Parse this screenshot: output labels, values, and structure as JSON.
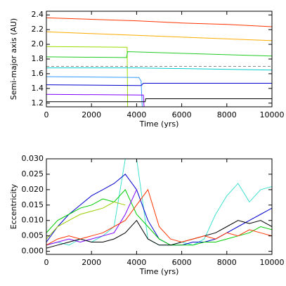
{
  "chart_data": [
    {
      "type": "line",
      "ylabel": "Semi-major axis (AU)",
      "xlabel": "Time (yrs)",
      "xlim": [
        0,
        10000
      ],
      "xticks": [
        0,
        2000,
        4000,
        6000,
        8000,
        10000
      ],
      "ylim": [
        1.15,
        2.45
      ],
      "yticks": [
        1.2,
        1.4,
        1.6,
        1.8,
        {
          "value": 2.0,
          "label": "2.0"
        },
        2.2,
        2.4
      ],
      "series": [
        {
          "color": "#ff3300",
          "x": [
            0,
            2000,
            4000,
            6000,
            8000,
            10000
          ],
          "values": [
            2.36,
            2.34,
            2.32,
            2.29,
            2.27,
            2.24
          ]
        },
        {
          "color": "#ffaa00",
          "x": [
            0,
            10000
          ],
          "values": [
            2.17,
            2.05
          ]
        },
        {
          "color": "#99dd00",
          "x": [
            0,
            3580,
            3600
          ],
          "values": [
            1.97,
            1.96,
            1.15
          ]
        },
        {
          "color": "#22cc22",
          "x": [
            0,
            3550,
            3600,
            10000
          ],
          "values": [
            1.83,
            1.82,
            1.9,
            1.84
          ]
        },
        {
          "color": "#888888",
          "dash": true,
          "x": [
            0,
            10000
          ],
          "values": [
            1.7,
            1.7
          ]
        },
        {
          "color": "#00cccc",
          "x": [
            0,
            4000,
            10000
          ],
          "values": [
            1.68,
            1.68,
            1.65
          ]
        },
        {
          "color": "#3399ff",
          "x": [
            0,
            4100,
            4200,
            4250
          ],
          "values": [
            1.56,
            1.55,
            1.5,
            1.15
          ]
        },
        {
          "color": "#0000cc",
          "x": [
            0,
            4200,
            4300,
            10000
          ],
          "values": [
            1.45,
            1.44,
            1.47,
            1.47
          ]
        },
        {
          "color": "#7f00ff",
          "x": [
            0,
            4300,
            4330
          ],
          "values": [
            1.32,
            1.31,
            1.15
          ]
        },
        {
          "color": "#000000",
          "x": [
            0,
            4380,
            4400,
            10000
          ],
          "values": [
            1.22,
            1.22,
            1.26,
            1.26
          ]
        }
      ]
    },
    {
      "type": "line",
      "ylabel": "Eccentricity",
      "xlabel": "Time (yrs)",
      "xlim": [
        0,
        10000
      ],
      "xticks": [
        0,
        2000,
        4000,
        6000,
        8000,
        10000
      ],
      "ylim": [
        -0.001,
        0.03
      ],
      "yticks": [
        {
          "value": 0,
          "label": "0.000"
        },
        0.005,
        {
          "value": 0.01,
          "label": "0.010"
        },
        0.015,
        {
          "value": 0.02,
          "label": "0.020"
        },
        0.025,
        {
          "value": 0.03,
          "label": "0.030"
        }
      ],
      "x": [
        0,
        500,
        1000,
        1500,
        2000,
        2500,
        3000,
        3500,
        4000,
        4500,
        5000,
        5500,
        6000,
        6500,
        7000,
        7500,
        8000,
        8500,
        9000,
        9500,
        10000
      ],
      "series": [
        {
          "color": "#40e0d0",
          "values": [
            0.002,
            0.003,
            0.002,
            0.004,
            0.003,
            0.005,
            0.008,
            0.03,
            0.03,
            0.004,
            0.002,
            0.002,
            0.003,
            0.002,
            0.004,
            0.012,
            0.018,
            0.022,
            0.016,
            0.02,
            0.021
          ]
        },
        {
          "color": "#0000cd",
          "values": [
            0.003,
            0.008,
            0.012,
            0.015,
            0.018,
            0.02,
            0.022,
            0.025,
            0.02,
            0.01,
            0.004,
            0.002,
            0.002,
            0.003,
            0.003,
            0.004,
            0.006,
            0.008,
            0.01,
            0.012,
            0.014
          ]
        },
        {
          "color": "#00cc00",
          "values": [
            0.006,
            0.01,
            0.012,
            0.014,
            0.015,
            0.017,
            0.016,
            0.02,
            0.012,
            0.008,
            0.004,
            0.002,
            0.002,
            0.002,
            0.003,
            0.003,
            0.004,
            0.005,
            0.006,
            0.008,
            0.007
          ]
        },
        {
          "color": "#99cc00",
          "values": [
            0.004,
            0.008,
            0.01,
            0.012,
            0.013,
            0.014,
            0.016,
            0.015,
            null,
            null,
            null,
            null,
            null,
            null,
            null,
            null,
            null,
            null,
            null,
            null,
            null
          ]
        },
        {
          "color": "#7f00ff",
          "values": [
            0.002,
            0.003,
            0.004,
            0.003,
            0.004,
            0.005,
            0.006,
            0.012,
            0.02,
            null,
            null,
            null,
            null,
            null,
            null,
            null,
            null,
            null,
            null,
            null,
            null
          ]
        },
        {
          "color": "#000000",
          "values": [
            0.001,
            0.002,
            0.003,
            0.004,
            0.003,
            0.003,
            0.004,
            0.006,
            0.01,
            0.004,
            0.002,
            0.002,
            0.003,
            0.004,
            0.005,
            0.006,
            0.008,
            0.01,
            0.009,
            0.01,
            0.008
          ]
        },
        {
          "color": "#ff3300",
          "values": [
            0.002,
            0.004,
            0.005,
            0.004,
            0.005,
            0.006,
            0.008,
            0.01,
            0.015,
            0.02,
            0.008,
            0.004,
            0.003,
            0.004,
            0.005,
            0.004,
            0.006,
            0.005,
            0.007,
            0.006,
            0.005
          ]
        }
      ]
    }
  ]
}
